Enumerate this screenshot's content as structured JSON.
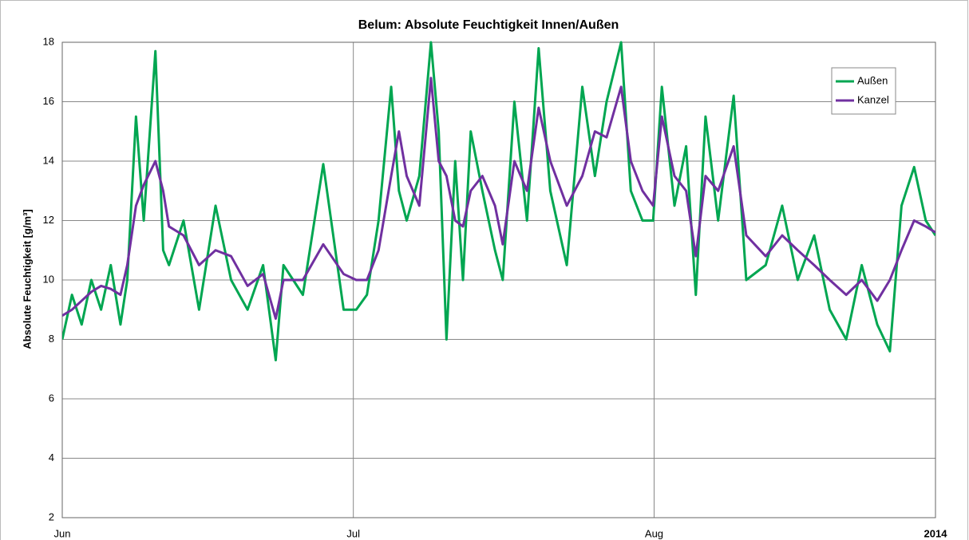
{
  "chart_data": {
    "type": "line",
    "title": "Belum: Absolute Feuchtigkeit Innen/Außen",
    "y_label": "Absolute Feuchtigkeit [g/m³]",
    "x": [
      0,
      1,
      2,
      3,
      4,
      5,
      6,
      6.7,
      7.6,
      8.4,
      9.6,
      10.4,
      11,
      12.5,
      14.1,
      15.8,
      17.4,
      19.1,
      20.7,
      22,
      22.8,
      24.8,
      26.9,
      29,
      30.3,
      31.4,
      32.6,
      33.9,
      34.7,
      35.5,
      36.8,
      38,
      38.8,
      39.6,
      40.5,
      41.3,
      42.1,
      43.3,
      44.6,
      45.4,
      46.6,
      47.9,
      49.1,
      50.3,
      52,
      53.6,
      54.9,
      56.1,
      57.6,
      58.6,
      59.8,
      60.9,
      61.8,
      63.1,
      64.3,
      65.3,
      66.3,
      67.6,
      69.2,
      70.5,
      72.5,
      74.2,
      75.8,
      77.5,
      79.1,
      80.8,
      82.4,
      84,
      85.3,
      86.5,
      87.8,
      89,
      90
    ],
    "series": [
      {
        "name": "Außen",
        "color": "#00a651",
        "values": [
          8.0,
          9.5,
          8.5,
          10.0,
          9.0,
          10.5,
          8.5,
          10.0,
          15.5,
          12.0,
          17.7,
          11.0,
          10.5,
          12.0,
          9.0,
          12.5,
          10.0,
          9.0,
          10.5,
          7.3,
          10.5,
          9.5,
          13.9,
          9.0,
          9.0,
          9.5,
          12.0,
          16.5,
          13.0,
          12.0,
          13.5,
          18.0,
          15.0,
          8.0,
          14.0,
          10.0,
          15.0,
          13.0,
          11.0,
          10.0,
          16.0,
          12.0,
          17.8,
          13.0,
          10.5,
          16.5,
          13.5,
          16.0,
          18.0,
          13.0,
          12.0,
          12.0,
          16.5,
          12.5,
          14.5,
          9.5,
          15.5,
          12.0,
          16.2,
          10.0,
          10.5,
          12.5,
          10.0,
          11.5,
          9.0,
          8.0,
          10.5,
          8.5,
          7.6,
          12.5,
          13.8,
          12.0,
          11.5
        ]
      },
      {
        "name": "Kanzel",
        "color": "#7030a0",
        "values": [
          8.8,
          9.0,
          9.3,
          9.6,
          9.8,
          9.7,
          9.5,
          10.5,
          12.5,
          13.2,
          14.0,
          13.0,
          11.8,
          11.5,
          10.5,
          11.0,
          10.8,
          9.8,
          10.2,
          8.7,
          10.0,
          10.0,
          11.2,
          10.2,
          10.0,
          10.0,
          11.0,
          13.5,
          15.0,
          13.5,
          12.5,
          16.8,
          14.0,
          13.5,
          12.0,
          11.8,
          13.0,
          13.5,
          12.5,
          11.2,
          14.0,
          13.0,
          15.8,
          14.0,
          12.5,
          13.5,
          15.0,
          14.8,
          16.5,
          14.0,
          13.0,
          12.5,
          15.5,
          13.5,
          13.0,
          10.8,
          13.5,
          13.0,
          14.5,
          11.5,
          10.8,
          11.5,
          11.0,
          10.5,
          10.0,
          9.5,
          10.0,
          9.3,
          10.0,
          11.0,
          12.0,
          11.8,
          11.6
        ]
      }
    ],
    "xlim": [
      0,
      90
    ],
    "xticks": [
      {
        "value": 0,
        "label": "Jun"
      },
      {
        "value": 30,
        "label": "Jul"
      },
      {
        "value": 61,
        "label": "Aug"
      },
      {
        "value": 90,
        "label": "2014"
      }
    ],
    "ylim": [
      2,
      18
    ],
    "yticks": [
      2,
      4,
      6,
      8,
      10,
      12,
      14,
      16,
      18
    ],
    "grid": true,
    "legend": "upper right"
  }
}
